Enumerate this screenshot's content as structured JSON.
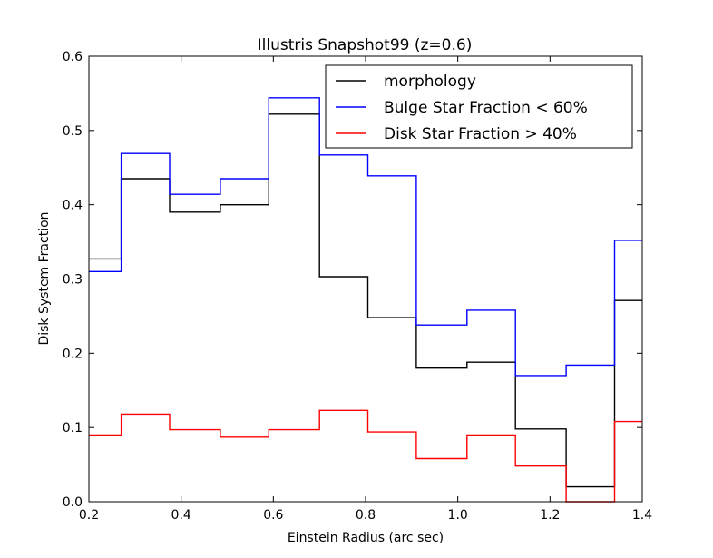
{
  "chart_data": {
    "type": "line",
    "subtype": "step-histogram",
    "title": "Illustris Snapshot99 (z=0.6)",
    "xlabel": "Einstein Radius (arc sec)",
    "ylabel": "Disk System Fraction",
    "xlim": [
      0.2,
      1.4
    ],
    "ylim": [
      0.0,
      0.6
    ],
    "xticks": [
      "0.2",
      "0.4",
      "0.6",
      "0.8",
      "1.0",
      "1.2",
      "1.4"
    ],
    "yticks": [
      "0.0",
      "0.1",
      "0.2",
      "0.3",
      "0.4",
      "0.5",
      "0.6"
    ],
    "grid": false,
    "legend_position": "top-right",
    "bin_edges": [
      0.2,
      0.27,
      0.375,
      0.485,
      0.59,
      0.7,
      0.805,
      0.91,
      1.02,
      1.125,
      1.235,
      1.34,
      1.4
    ],
    "series": [
      {
        "name": "morphology",
        "color": "#000000",
        "values": [
          0.327,
          0.435,
          0.39,
          0.4,
          0.522,
          0.303,
          0.248,
          0.18,
          0.188,
          0.098,
          0.02,
          0.271
        ]
      },
      {
        "name": "Bulge Star Fraction < 60%",
        "color": "#0000ff",
        "values": [
          0.31,
          0.469,
          0.414,
          0.435,
          0.544,
          0.467,
          0.439,
          0.238,
          0.258,
          0.17,
          0.184,
          0.352
        ]
      },
      {
        "name": "Disk Star Fraction > 40%",
        "color": "#ff0000",
        "values": [
          0.09,
          0.118,
          0.097,
          0.087,
          0.097,
          0.123,
          0.094,
          0.058,
          0.09,
          0.048,
          0.0,
          0.108
        ]
      }
    ]
  }
}
